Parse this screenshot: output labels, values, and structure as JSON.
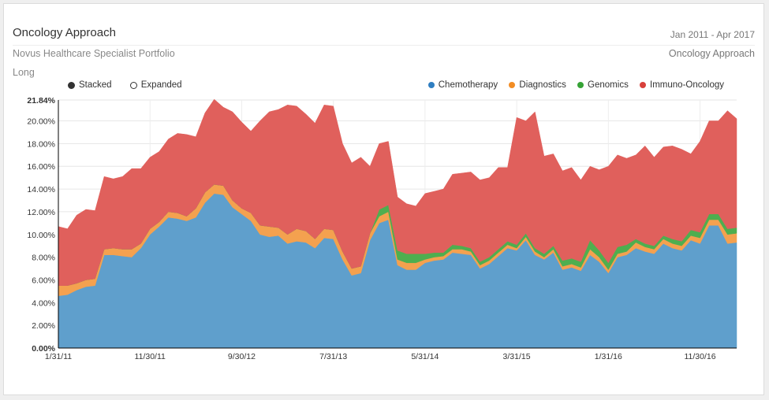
{
  "header": {
    "title": "Oncology Approach",
    "date_range": "Jan 2011 - Apr 2017",
    "subtitle": "Novus Healthcare Specialist Portfolio",
    "subtitle_right": "Oncology Approach",
    "position": "Long"
  },
  "controls": {
    "stacked_label": "Stacked",
    "expanded_label": "Expanded",
    "selected": "Stacked"
  },
  "chart_data": {
    "type": "area",
    "stacked": true,
    "x_start": "1/31/11",
    "x_end": "4/30/17",
    "x_tick_labels": [
      "1/31/11",
      "11/30/11",
      "9/30/12",
      "7/31/13",
      "5/31/14",
      "3/31/15",
      "1/31/16",
      "11/30/16"
    ],
    "x_ticks_month_index": [
      0,
      10,
      20,
      30,
      40,
      50,
      60,
      70
    ],
    "y_tick_labels": [
      "0.00%",
      "2.00%",
      "4.00%",
      "6.00%",
      "8.00%",
      "10.00%",
      "12.00%",
      "14.00%",
      "16.00%",
      "18.00%",
      "20.00%",
      "21.84%"
    ],
    "ylim": [
      0,
      21.84
    ],
    "ymax_label": "21.84%",
    "legend_position": "top-right",
    "series": [
      {
        "name": "Chemotherapy",
        "color": "#5f9fcc",
        "values": [
          4.6,
          4.7,
          5.1,
          5.4,
          5.5,
          8.2,
          8.2,
          8.1,
          8.0,
          8.8,
          10.0,
          10.7,
          11.5,
          11.4,
          11.2,
          11.5,
          12.8,
          13.6,
          13.5,
          12.4,
          11.8,
          11.2,
          10.0,
          9.8,
          9.9,
          9.2,
          9.4,
          9.3,
          8.8,
          9.7,
          9.6,
          7.8,
          6.4,
          6.6,
          9.5,
          11.0,
          11.3,
          7.3,
          6.9,
          6.9,
          7.5,
          7.7,
          7.8,
          8.4,
          8.3,
          8.2,
          7.0,
          7.4,
          8.1,
          8.8,
          8.6,
          9.5,
          8.2,
          7.8,
          8.4,
          6.9,
          7.1,
          6.8,
          8.2,
          7.6,
          6.6,
          8.0,
          8.2,
          8.8,
          8.5,
          8.3,
          9.2,
          8.8,
          8.6,
          9.5,
          9.2,
          10.8,
          10.8,
          9.2,
          9.3
        ]
      },
      {
        "name": "Diagnostics",
        "color": "#f4a14f",
        "values": [
          0.9,
          0.8,
          0.6,
          0.6,
          0.6,
          0.5,
          0.6,
          0.6,
          0.7,
          0.4,
          0.5,
          0.4,
          0.5,
          0.5,
          0.4,
          0.8,
          0.9,
          0.8,
          0.8,
          0.6,
          0.5,
          0.7,
          0.8,
          0.9,
          0.7,
          0.8,
          1.1,
          1.0,
          0.8,
          0.8,
          0.8,
          0.7,
          0.6,
          0.6,
          0.6,
          0.6,
          0.7,
          0.5,
          0.6,
          0.6,
          0.3,
          0.3,
          0.3,
          0.3,
          0.4,
          0.3,
          0.3,
          0.3,
          0.3,
          0.3,
          0.2,
          0.3,
          0.3,
          0.2,
          0.3,
          0.3,
          0.3,
          0.3,
          0.5,
          0.4,
          0.3,
          0.3,
          0.3,
          0.5,
          0.4,
          0.4,
          0.4,
          0.4,
          0.4,
          0.4,
          0.5,
          0.5,
          0.5,
          0.8,
          0.8
        ]
      },
      {
        "name": "Genomics",
        "color": "#4fae4f",
        "values": [
          0,
          0,
          0,
          0,
          0,
          0,
          0,
          0,
          0,
          0,
          0,
          0,
          0,
          0,
          0,
          0,
          0,
          0,
          0,
          0,
          0,
          0,
          0,
          0,
          0,
          0,
          0,
          0,
          0,
          0,
          0,
          0,
          0,
          0,
          0,
          0.6,
          0.6,
          0.8,
          0.8,
          0.8,
          0.5,
          0.4,
          0.3,
          0.4,
          0.3,
          0.3,
          0.3,
          0.3,
          0.3,
          0.3,
          0.3,
          0.3,
          0.3,
          0.3,
          0.3,
          0.5,
          0.5,
          0.5,
          0.8,
          0.6,
          0.6,
          0.6,
          0.6,
          0.3,
          0.3,
          0.3,
          0.3,
          0.4,
          0.4,
          0.5,
          0.5,
          0.5,
          0.5,
          0.5,
          0.5
        ]
      },
      {
        "name": "Immuno-Oncology",
        "color": "#e0605c",
        "values": [
          5.2,
          5.0,
          6.0,
          6.2,
          6.0,
          6.4,
          6.1,
          6.4,
          7.1,
          6.6,
          6.3,
          6.2,
          6.4,
          7.0,
          7.2,
          6.3,
          7.0,
          7.5,
          6.9,
          7.8,
          7.6,
          7.2,
          9.2,
          10.1,
          10.4,
          11.4,
          10.8,
          10.3,
          10.2,
          10.9,
          10.9,
          9.5,
          9.3,
          9.6,
          5.9,
          5.8,
          5.6,
          4.7,
          4.4,
          4.2,
          5.3,
          5.4,
          5.6,
          6.2,
          6.4,
          6.7,
          7.2,
          7.0,
          7.2,
          6.5,
          11.2,
          9.9,
          12.0,
          8.6,
          8.1,
          7.9,
          8.0,
          7.2,
          6.5,
          7.1,
          8.5,
          8.1,
          7.6,
          7.4,
          8.6,
          7.8,
          7.8,
          8.2,
          8.1,
          6.7,
          8.0,
          8.2,
          8.2,
          10.4,
          9.6
        ]
      }
    ]
  }
}
